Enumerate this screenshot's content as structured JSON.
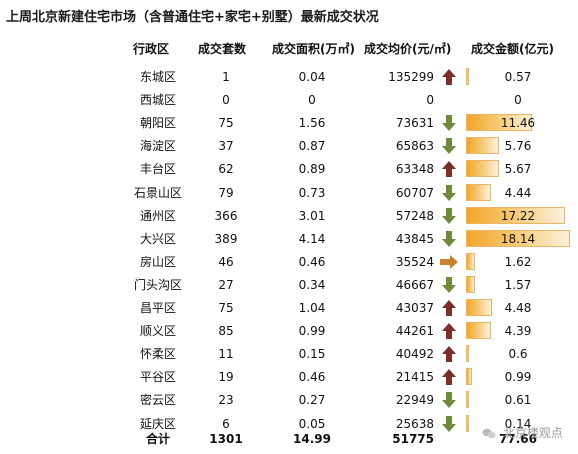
{
  "title": "上周北京新建住宅市场（含普通住宅+家宅+别墅）最新成交状况",
  "headers": {
    "district": "行政区",
    "sets": "成交套数",
    "area": "成交面积(万㎡)",
    "price": "成交均价(元/㎡)",
    "amount": "成交金额(亿元)"
  },
  "colors": {
    "up_arrow": "#7b2f2a",
    "down_arrow": "#6e8b3d",
    "flat_arrow": "#c9822d",
    "bar": "#f2a62a"
  },
  "rows": [
    {
      "district": "东城区",
      "sets": "1",
      "area": "0.04",
      "price": "135299",
      "trend": "up",
      "amount": "0.57",
      "amount_value": 0.57
    },
    {
      "district": "西城区",
      "sets": "0",
      "area": "0",
      "price": "0",
      "trend": "none",
      "amount": "0",
      "amount_value": 0
    },
    {
      "district": "朝阳区",
      "sets": "75",
      "area": "1.56",
      "price": "73631",
      "trend": "down",
      "amount": "11.46",
      "amount_value": 11.46
    },
    {
      "district": "海淀区",
      "sets": "37",
      "area": "0.87",
      "price": "65863",
      "trend": "down",
      "amount": "5.76",
      "amount_value": 5.76
    },
    {
      "district": "丰台区",
      "sets": "62",
      "area": "0.89",
      "price": "63348",
      "trend": "up",
      "amount": "5.67",
      "amount_value": 5.67
    },
    {
      "district": "石景山区",
      "sets": "79",
      "area": "0.73",
      "price": "60707",
      "trend": "down",
      "amount": "4.44",
      "amount_value": 4.44
    },
    {
      "district": "通州区",
      "sets": "366",
      "area": "3.01",
      "price": "57248",
      "trend": "down",
      "amount": "17.22",
      "amount_value": 17.22
    },
    {
      "district": "大兴区",
      "sets": "389",
      "area": "4.14",
      "price": "43845",
      "trend": "down",
      "amount": "18.14",
      "amount_value": 18.14
    },
    {
      "district": "房山区",
      "sets": "46",
      "area": "0.46",
      "price": "35524",
      "trend": "flat",
      "amount": "1.62",
      "amount_value": 1.62
    },
    {
      "district": "门头沟区",
      "sets": "27",
      "area": "0.34",
      "price": "46667",
      "trend": "down",
      "amount": "1.57",
      "amount_value": 1.57
    },
    {
      "district": "昌平区",
      "sets": "75",
      "area": "1.04",
      "price": "43037",
      "trend": "up",
      "amount": "4.48",
      "amount_value": 4.48
    },
    {
      "district": "顺义区",
      "sets": "85",
      "area": "0.99",
      "price": "44261",
      "trend": "up",
      "amount": "4.39",
      "amount_value": 4.39
    },
    {
      "district": "怀柔区",
      "sets": "11",
      "area": "0.15",
      "price": "40492",
      "trend": "up",
      "amount": "0.6",
      "amount_value": 0.6
    },
    {
      "district": "平谷区",
      "sets": "19",
      "area": "0.46",
      "price": "21415",
      "trend": "up",
      "amount": "0.99",
      "amount_value": 0.99
    },
    {
      "district": "密云区",
      "sets": "23",
      "area": "0.27",
      "price": "22949",
      "trend": "down",
      "amount": "0.61",
      "amount_value": 0.61
    },
    {
      "district": "延庆区",
      "sets": "6",
      "area": "0.05",
      "price": "25638",
      "trend": "down",
      "amount": "0.14",
      "amount_value": 0.14
    }
  ],
  "total": {
    "label": "合计",
    "sets": "1301",
    "area": "14.99",
    "price": "51775",
    "amount": "77.66"
  },
  "watermark": "北京楼观点"
}
